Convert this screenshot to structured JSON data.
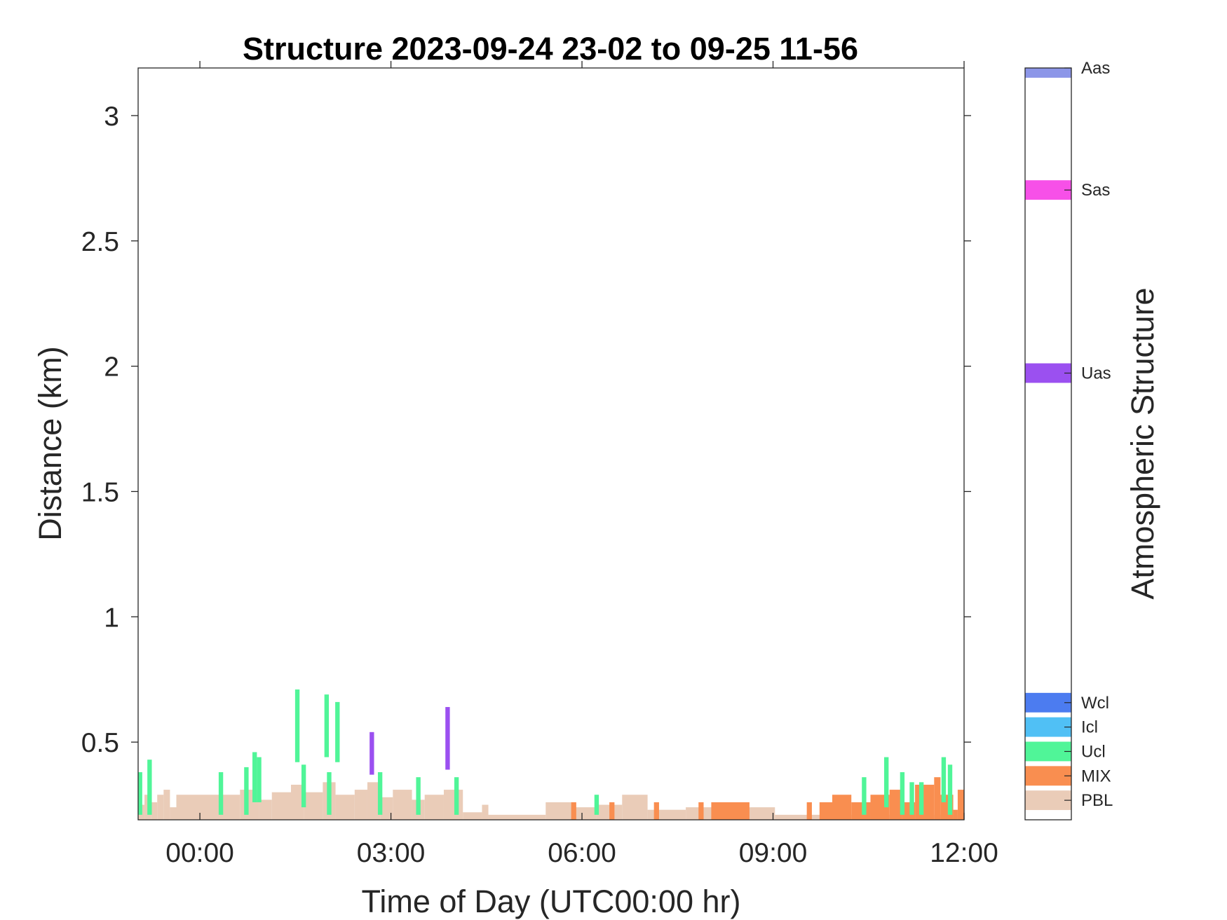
{
  "chart_data": {
    "type": "heatmap",
    "title": "Structure 2023-09-24 23-02 to 09-25 11-56",
    "xlabel": "Time of Day (UTC00:00 hr)",
    "ylabel": "Distance (km)",
    "xlim": [
      -0.97,
      12.0
    ],
    "ylim": [
      0.19,
      3.19
    ],
    "x_ticks": [
      0,
      3,
      6,
      9,
      12
    ],
    "x_tick_labels": [
      "00:00",
      "03:00",
      "06:00",
      "09:00",
      "12:00"
    ],
    "y_ticks": [
      0.5,
      1,
      1.5,
      2,
      2.5,
      3
    ],
    "y_tick_labels": [
      "0.5",
      "1",
      "1.5",
      "2",
      "2.5",
      "3"
    ],
    "bin_width_hr": 0.1,
    "colorbar": {
      "label": "Atmospheric Structure",
      "classes": [
        {
          "name": "PBL",
          "color": "#EACCB8"
        },
        {
          "name": "MIX",
          "color": "#F98E50"
        },
        {
          "name": "Ucl",
          "color": "#50F598"
        },
        {
          "name": "Icl",
          "color": "#50C0F5"
        },
        {
          "name": "Wcl",
          "color": "#4C7CF0"
        },
        {
          "name": "Uas",
          "color": "#9B50F0"
        },
        {
          "name": "Sas",
          "color": "#F750E8"
        },
        {
          "name": "Aas",
          "color": "#8C96E8"
        }
      ]
    },
    "pbl_profile": [
      {
        "x0": -0.97,
        "x1": -0.87,
        "top": 0.25
      },
      {
        "x0": -0.87,
        "x1": -0.77,
        "top": 0.29
      },
      {
        "x0": -0.77,
        "x1": -0.67,
        "top": 0.26
      },
      {
        "x0": -0.67,
        "x1": -0.57,
        "top": 0.29
      },
      {
        "x0": -0.57,
        "x1": -0.47,
        "top": 0.31
      },
      {
        "x0": -0.47,
        "x1": -0.37,
        "top": 0.24
      },
      {
        "x0": -0.37,
        "x1": 0.63,
        "top": 0.29
      },
      {
        "x0": 0.63,
        "x1": 0.93,
        "top": 0.31
      },
      {
        "x0": 0.93,
        "x1": 1.13,
        "top": 0.27
      },
      {
        "x0": 1.13,
        "x1": 1.43,
        "top": 0.3
      },
      {
        "x0": 1.43,
        "x1": 1.63,
        "top": 0.33
      },
      {
        "x0": 1.63,
        "x1": 1.93,
        "top": 0.3
      },
      {
        "x0": 1.93,
        "x1": 2.13,
        "top": 0.34
      },
      {
        "x0": 2.13,
        "x1": 2.43,
        "top": 0.29
      },
      {
        "x0": 2.43,
        "x1": 2.63,
        "top": 0.31
      },
      {
        "x0": 2.63,
        "x1": 2.83,
        "top": 0.34
      },
      {
        "x0": 2.83,
        "x1": 3.03,
        "top": 0.28
      },
      {
        "x0": 3.03,
        "x1": 3.33,
        "top": 0.31
      },
      {
        "x0": 3.33,
        "x1": 3.53,
        "top": 0.27
      },
      {
        "x0": 3.53,
        "x1": 3.83,
        "top": 0.29
      },
      {
        "x0": 3.83,
        "x1": 4.13,
        "top": 0.31
      },
      {
        "x0": 4.13,
        "x1": 4.43,
        "top": 0.22
      },
      {
        "x0": 4.43,
        "x1": 4.53,
        "top": 0.25
      },
      {
        "x0": 4.53,
        "x1": 5.43,
        "top": 0.21
      },
      {
        "x0": 5.43,
        "x1": 5.83,
        "top": 0.26
      },
      {
        "x0": 5.83,
        "x1": 6.23,
        "top": 0.24
      },
      {
        "x0": 6.23,
        "x1": 6.63,
        "top": 0.25
      },
      {
        "x0": 6.63,
        "x1": 7.03,
        "top": 0.29
      },
      {
        "x0": 7.03,
        "x1": 7.63,
        "top": 0.23
      },
      {
        "x0": 7.63,
        "x1": 9.03,
        "top": 0.24
      },
      {
        "x0": 9.03,
        "x1": 12.0,
        "top": 0.21
      }
    ],
    "mix_layers": [
      {
        "x0": 5.83,
        "x1": 5.91,
        "top": 0.26
      },
      {
        "x0": 6.43,
        "x1": 6.51,
        "top": 0.26
      },
      {
        "x0": 7.13,
        "x1": 7.21,
        "top": 0.26
      },
      {
        "x0": 7.83,
        "x1": 7.91,
        "top": 0.26
      },
      {
        "x0": 8.03,
        "x1": 8.63,
        "top": 0.26
      },
      {
        "x0": 9.53,
        "x1": 9.61,
        "top": 0.26
      },
      {
        "x0": 9.73,
        "x1": 9.93,
        "top": 0.26
      },
      {
        "x0": 9.93,
        "x1": 10.23,
        "top": 0.29
      },
      {
        "x0": 10.23,
        "x1": 10.53,
        "top": 0.26
      },
      {
        "x0": 10.53,
        "x1": 10.83,
        "top": 0.29
      },
      {
        "x0": 10.83,
        "x1": 11.03,
        "top": 0.31
      },
      {
        "x0": 11.03,
        "x1": 11.23,
        "top": 0.26
      },
      {
        "x0": 11.23,
        "x1": 11.53,
        "top": 0.33
      },
      {
        "x0": 11.53,
        "x1": 11.63,
        "top": 0.36
      },
      {
        "x0": 11.63,
        "x1": 11.83,
        "top": 0.29
      },
      {
        "x0": 11.83,
        "x1": 11.9,
        "top": 0.23
      },
      {
        "x0": 11.9,
        "x1": 12.0,
        "top": 0.31
      }
    ],
    "cloud_segments": [
      {
        "class": "Ucl",
        "x": -0.94,
        "bottom": 0.21,
        "top": 0.38
      },
      {
        "class": "Ucl",
        "x": -0.79,
        "bottom": 0.21,
        "top": 0.43
      },
      {
        "class": "Ucl",
        "x": 0.33,
        "bottom": 0.21,
        "top": 0.38
      },
      {
        "class": "Ucl",
        "x": 0.73,
        "bottom": 0.21,
        "top": 0.4
      },
      {
        "class": "Ucl",
        "x": 0.86,
        "bottom": 0.26,
        "top": 0.46
      },
      {
        "class": "Ucl",
        "x": 0.93,
        "bottom": 0.26,
        "top": 0.44
      },
      {
        "class": "Ucl",
        "x": 1.53,
        "bottom": 0.42,
        "top": 0.71
      },
      {
        "class": "Ucl",
        "x": 1.63,
        "bottom": 0.24,
        "top": 0.41
      },
      {
        "class": "Ucl",
        "x": 1.99,
        "bottom": 0.44,
        "top": 0.69
      },
      {
        "class": "Ucl",
        "x": 2.03,
        "bottom": 0.21,
        "top": 0.38
      },
      {
        "class": "Ucl",
        "x": 2.16,
        "bottom": 0.42,
        "top": 0.66
      },
      {
        "class": "Uas",
        "x": 2.7,
        "bottom": 0.37,
        "top": 0.54
      },
      {
        "class": "Ucl",
        "x": 2.83,
        "bottom": 0.21,
        "top": 0.38
      },
      {
        "class": "Ucl",
        "x": 3.43,
        "bottom": 0.21,
        "top": 0.36
      },
      {
        "class": "Uas",
        "x": 3.89,
        "bottom": 0.39,
        "top": 0.64
      },
      {
        "class": "Ucl",
        "x": 4.03,
        "bottom": 0.21,
        "top": 0.36
      },
      {
        "class": "Ucl",
        "x": 6.23,
        "bottom": 0.21,
        "top": 0.29
      },
      {
        "class": "Ucl",
        "x": 10.43,
        "bottom": 0.21,
        "top": 0.36
      },
      {
        "class": "Ucl",
        "x": 10.78,
        "bottom": 0.24,
        "top": 0.44
      },
      {
        "class": "Ucl",
        "x": 11.03,
        "bottom": 0.21,
        "top": 0.38
      },
      {
        "class": "Ucl",
        "x": 11.18,
        "bottom": 0.21,
        "top": 0.34
      },
      {
        "class": "Ucl",
        "x": 11.33,
        "bottom": 0.21,
        "top": 0.34
      },
      {
        "class": "Ucl",
        "x": 11.68,
        "bottom": 0.26,
        "top": 0.44
      },
      {
        "class": "Ucl",
        "x": 11.78,
        "bottom": 0.21,
        "top": 0.41
      }
    ]
  }
}
